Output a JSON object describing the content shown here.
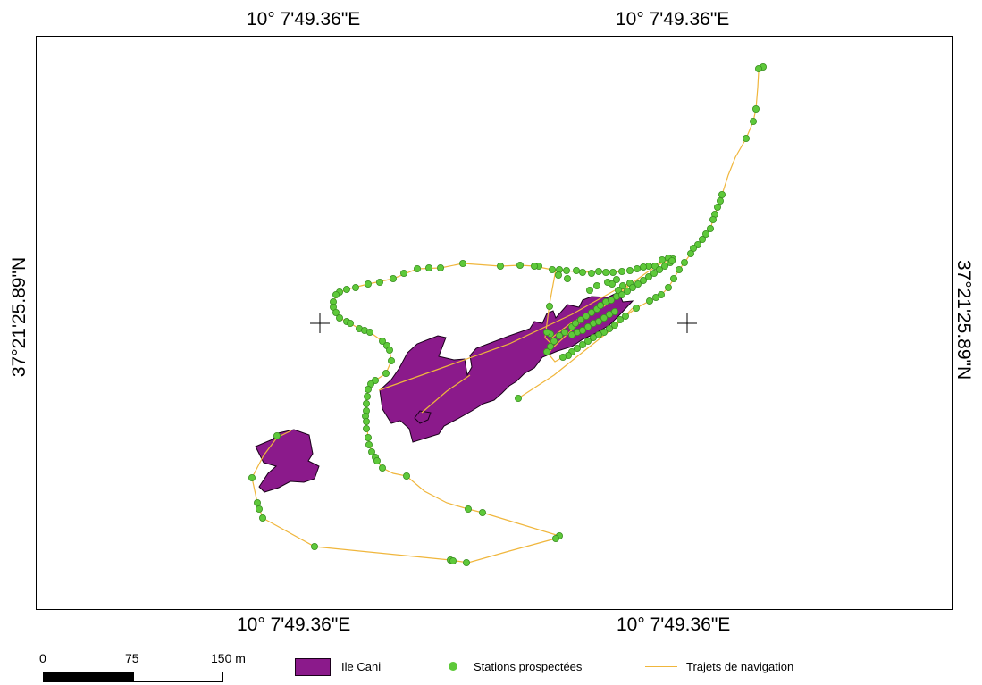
{
  "map": {
    "graticule": {
      "top_left": "10° 7'49.36\"E",
      "top_right": "10° 7'49.36\"E",
      "bottom_left": "10° 7'49.36\"E",
      "bottom_right": "10° 7'49.36\"E",
      "left": "37°21'25.89\"N",
      "right": "37°21'25.89\"N"
    },
    "colors": {
      "island_fill": "#8B1A8B",
      "island_stroke": "#1a001a",
      "station_fill": "#5EC93A",
      "station_stroke": "#3b8f22",
      "track": "#F0B63C",
      "frame": "#000000"
    }
  },
  "scale_bar": {
    "labels": [
      "0",
      "75",
      "150 m"
    ]
  },
  "legend": {
    "items": [
      {
        "label": "Ile Cani",
        "icon": "polygon-swatch"
      },
      {
        "label": "Stations prospectées",
        "icon": "green-dot"
      },
      {
        "label": "Trajets de navigation",
        "icon": "yellow-line"
      }
    ]
  }
}
